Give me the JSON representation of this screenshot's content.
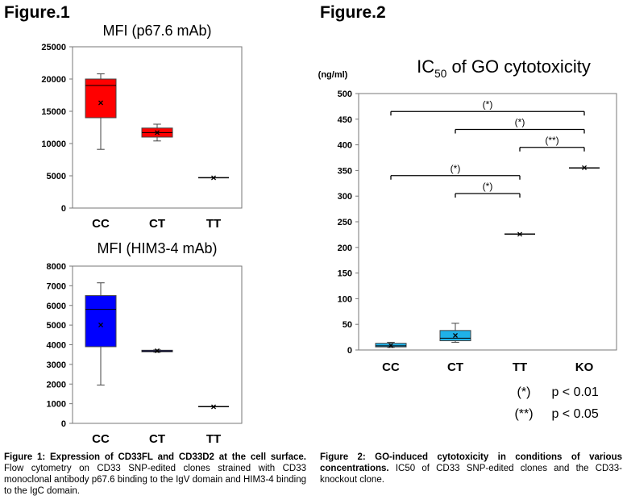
{
  "figure1": {
    "label": "Figure.1",
    "caption_bold": "Figure 1: Expression of CD33FL and CD33D2 at the cell surface.",
    "caption_text": " Flow cytometry on CD33 SNP-edited clones strained with CD33 monoclonal antibody p67.6 binding to the IgV domain and HIM3-4 binding to the IgC domain."
  },
  "figure2": {
    "label": "Figure.2",
    "caption_bold": "Figure 2: GO-induced cytotoxicity in conditions of various concentrations.",
    "caption_text": " IC50 of CD33 SNP-edited clones and the CD33-knockout clone.",
    "legend": [
      {
        "symbol": "(*)",
        "text": "p < 0.01"
      },
      {
        "symbol": "(**)",
        "text": "p < 0.05"
      }
    ]
  },
  "chart_data": [
    {
      "type": "box",
      "id": "fig1a",
      "title": "MFI (p67.6 mAb)",
      "xlabel": "",
      "ylabel": "",
      "ylim": [
        0,
        25000
      ],
      "yticks": [
        0,
        5000,
        10000,
        15000,
        20000,
        25000
      ],
      "categories": [
        "CC",
        "CT",
        "TT"
      ],
      "boxes": [
        {
          "category": "CC",
          "min": 9100,
          "q1": 14000,
          "median": 19000,
          "q3": 20000,
          "max": 20800,
          "mean": 16300,
          "color": "#ff0000"
        },
        {
          "category": "CT",
          "min": 10400,
          "q1": 11000,
          "median": 11700,
          "q3": 12400,
          "max": 13000,
          "mean": 11700,
          "color": "#ff0000"
        },
        {
          "category": "TT",
          "min": 4700,
          "q1": 4700,
          "median": 4700,
          "q3": 4700,
          "max": 4700,
          "mean": 4700,
          "color": "#ff0000"
        }
      ]
    },
    {
      "type": "box",
      "id": "fig1b",
      "title": "MFI (HIM3-4 mAb)",
      "xlabel": "",
      "ylabel": "",
      "ylim": [
        0,
        8000
      ],
      "yticks": [
        0,
        1000,
        2000,
        3000,
        4000,
        5000,
        6000,
        7000,
        8000
      ],
      "categories": [
        "CC",
        "CT",
        "TT"
      ],
      "boxes": [
        {
          "category": "CC",
          "min": 1950,
          "q1": 3900,
          "median": 5800,
          "q3": 6500,
          "max": 7150,
          "mean": 5000,
          "color": "#0000ff"
        },
        {
          "category": "CT",
          "min": 3620,
          "q1": 3640,
          "median": 3680,
          "q3": 3720,
          "max": 3740,
          "mean": 3700,
          "color": "#0000ff"
        },
        {
          "category": "TT",
          "min": 850,
          "q1": 850,
          "median": 850,
          "q3": 850,
          "max": 850,
          "mean": 850,
          "color": "#0000ff"
        }
      ]
    },
    {
      "type": "box",
      "id": "fig2",
      "title_main": "IC",
      "title_sub": "50",
      "title_rest": " of GO cytotoxicity",
      "ylabel": "(ng/ml)",
      "xlabel": "",
      "ylim": [
        0,
        500
      ],
      "yticks": [
        0,
        50,
        100,
        150,
        200,
        250,
        300,
        350,
        400,
        450,
        500
      ],
      "categories": [
        "CC",
        "CT",
        "TT",
        "KO"
      ],
      "boxes": [
        {
          "category": "CC",
          "min": 5,
          "q1": 6,
          "median": 8,
          "q3": 13,
          "max": 15,
          "mean": 9,
          "color": "#1fb1e8"
        },
        {
          "category": "CT",
          "min": 15,
          "q1": 18,
          "median": 23,
          "q3": 38,
          "max": 52,
          "mean": 28,
          "color": "#1fb1e8"
        },
        {
          "category": "TT",
          "min": 226,
          "q1": 226,
          "median": 226,
          "q3": 226,
          "max": 226,
          "mean": 226,
          "color": "#1fb1e8"
        },
        {
          "category": "KO",
          "min": 355,
          "q1": 355,
          "median": 355,
          "q3": 355,
          "max": 355,
          "mean": 355,
          "color": "#1fb1e8"
        }
      ],
      "significance": [
        {
          "from": "CC",
          "to": "KO",
          "y": 465,
          "label": "(*)"
        },
        {
          "from": "CT",
          "to": "KO",
          "y": 430,
          "label": "(*)"
        },
        {
          "from": "TT",
          "to": "KO",
          "y": 395,
          "label": "(**)"
        },
        {
          "from": "CC",
          "to": "TT",
          "y": 340,
          "label": "(*)"
        },
        {
          "from": "CT",
          "to": "TT",
          "y": 305,
          "label": "(*)"
        }
      ]
    }
  ]
}
